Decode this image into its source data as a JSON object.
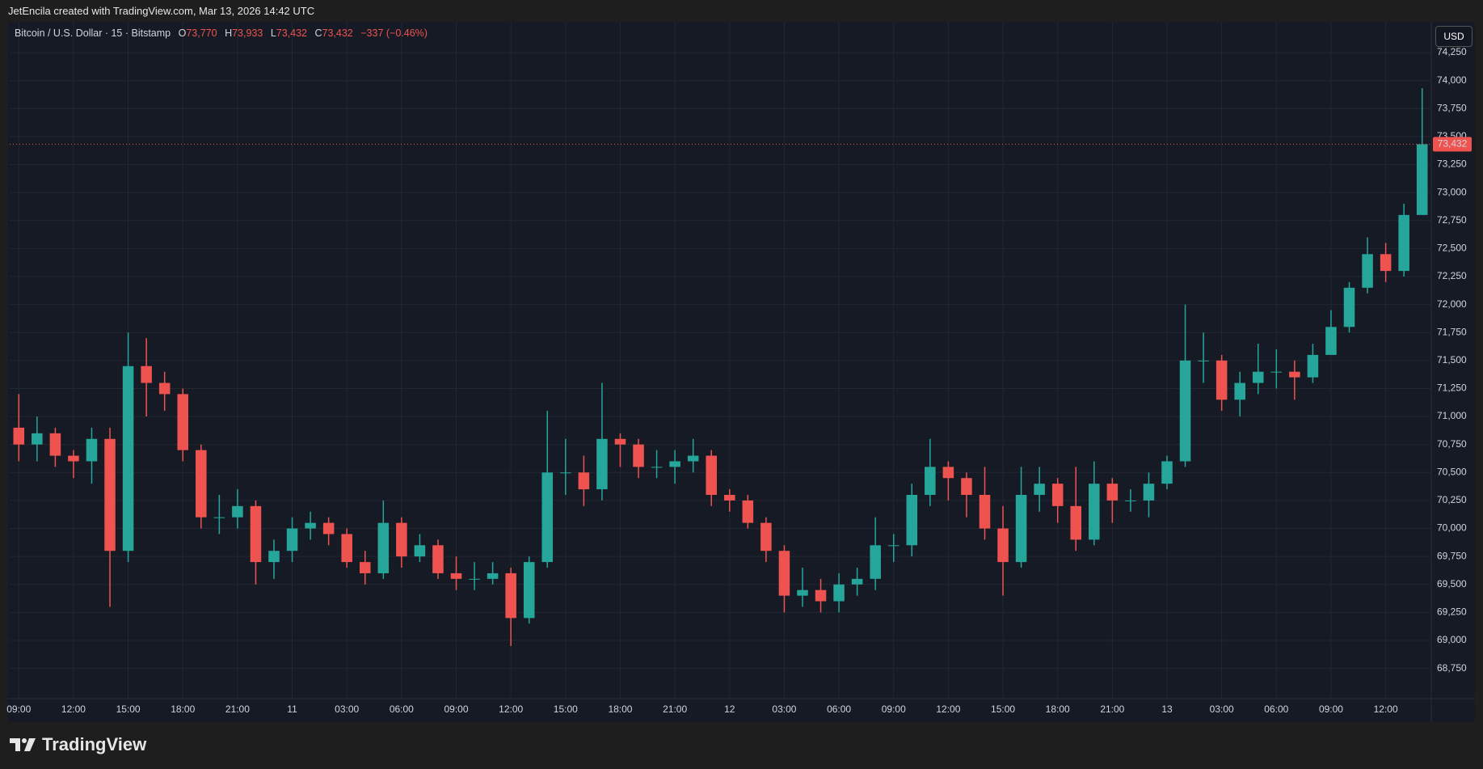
{
  "chart_data": {
    "type": "candlestick",
    "attribution": "JetEncila created with TradingView.com, Mar 13, 2026 14:42 UTC",
    "symbol": "Bitcoin / U.S. Dollar · 15 · Bitstamp",
    "ohlc_header": {
      "o_label": "O",
      "open": "73,770",
      "h_label": "H",
      "high": "73,933",
      "l_label": "L",
      "low": "73,432",
      "c_label": "C",
      "close": "73,432",
      "change": "−337 (−0.46%)"
    },
    "currency": "USD",
    "brand": "TradingView",
    "up_color": "#26a69a",
    "down_color": "#ef5350",
    "grid": true,
    "categories": [
      "09:00",
      null,
      null,
      "12:00",
      null,
      null,
      "15:00",
      null,
      null,
      "18:00",
      null,
      null,
      "21:00",
      null,
      null,
      "11",
      null,
      null,
      "03:00",
      null,
      null,
      "06:00",
      null,
      null,
      "09:00",
      null,
      null,
      "12:00",
      null,
      null,
      "15:00",
      null,
      null,
      "18:00",
      null,
      null,
      "21:00",
      null,
      null,
      "12",
      null,
      null,
      "03:00",
      null,
      null,
      "06:00",
      null,
      null,
      "09:00",
      null,
      null,
      "12:00",
      null,
      null,
      "15:00",
      null,
      null,
      "18:00",
      null,
      null,
      "21:00",
      null,
      null,
      "13",
      null,
      null,
      "03:00",
      null,
      null,
      "06:00",
      null,
      null,
      "09:00",
      null,
      null,
      "12:00",
      null,
      null
    ],
    "open": [
      70900,
      70750,
      70850,
      70650,
      70600,
      70800,
      69800,
      71450,
      71300,
      71200,
      70700,
      70100,
      70100,
      70200,
      69700,
      69800,
      70000,
      70050,
      69950,
      69700,
      69600,
      70050,
      69750,
      69850,
      69600,
      69550,
      69550,
      69600,
      69200,
      69700,
      70500,
      70500,
      70350,
      70800,
      70750,
      70550,
      70550,
      70600,
      70650,
      70300,
      70250,
      70050,
      69800,
      69400,
      69450,
      69350,
      69500,
      69550,
      69850,
      69850,
      70300,
      70550,
      70450,
      70300,
      70000,
      69700,
      70300,
      70400,
      70200,
      69900,
      70400,
      70250,
      70250,
      70400,
      70600,
      71500,
      71500,
      71150,
      71300,
      71400,
      71400,
      71350,
      71550,
      71800,
      72150,
      72450,
      72300,
      72800
    ],
    "high": [
      71200,
      71000,
      70900,
      70700,
      70900,
      70900,
      71750,
      71700,
      71400,
      71250,
      70750,
      70300,
      70350,
      70250,
      69900,
      70100,
      70150,
      70100,
      70000,
      69800,
      70250,
      70100,
      69950,
      69900,
      69750,
      69700,
      69700,
      69650,
      69750,
      71050,
      70800,
      70650,
      71300,
      70850,
      70800,
      70700,
      70700,
      70800,
      70700,
      70350,
      70300,
      70100,
      69850,
      69650,
      69550,
      69600,
      69650,
      70100,
      69950,
      70400,
      70800,
      70600,
      70500,
      70550,
      70200,
      70550,
      70550,
      70450,
      70550,
      70600,
      70450,
      70350,
      70500,
      70650,
      72000,
      71750,
      71550,
      71400,
      71650,
      71600,
      71500,
      71650,
      71950,
      72200,
      72600,
      72550,
      72900,
      73933
    ],
    "low": [
      70600,
      70600,
      70550,
      70450,
      70400,
      69300,
      69700,
      71000,
      71050,
      70600,
      70000,
      69950,
      70000,
      69500,
      69550,
      69700,
      69900,
      69850,
      69650,
      69500,
      69550,
      69650,
      69700,
      69550,
      69450,
      69450,
      69500,
      68950,
      69150,
      69650,
      70300,
      70200,
      70250,
      70550,
      70450,
      70450,
      70400,
      70500,
      70200,
      70150,
      70000,
      69700,
      69250,
      69300,
      69250,
      69250,
      69400,
      69450,
      69700,
      69750,
      70200,
      70250,
      70100,
      69900,
      69400,
      69650,
      70150,
      70050,
      69800,
      69850,
      70050,
      70150,
      70100,
      70350,
      70550,
      71300,
      71050,
      71000,
      71200,
      71250,
      71150,
      71300,
      71550,
      71750,
      72100,
      72200,
      72250,
      72800
    ],
    "close": [
      70750,
      70850,
      70650,
      70600,
      70800,
      69800,
      71450,
      71300,
      71200,
      70700,
      70100,
      70100,
      70200,
      69700,
      69800,
      70000,
      70050,
      69950,
      69700,
      69600,
      70050,
      69750,
      69850,
      69600,
      69550,
      69550,
      69600,
      69200,
      69700,
      70500,
      70500,
      70350,
      70800,
      70750,
      70550,
      70550,
      70600,
      70650,
      70300,
      70250,
      70050,
      69800,
      69400,
      69450,
      69350,
      69500,
      69550,
      69850,
      69850,
      70300,
      70550,
      70450,
      70300,
      70000,
      69700,
      70300,
      70400,
      70200,
      69900,
      70400,
      70250,
      70250,
      70400,
      70600,
      71500,
      71500,
      71150,
      71300,
      71400,
      71400,
      71350,
      71550,
      71800,
      72150,
      72450,
      72300,
      72800,
      73432
    ],
    "ylim": [
      68480,
      74525
    ],
    "yticks": [
      {
        "value": 68750,
        "label": "68,750"
      },
      {
        "value": 69000,
        "label": "69,000"
      },
      {
        "value": 69250,
        "label": "69,250"
      },
      {
        "value": 69500,
        "label": "69,500"
      },
      {
        "value": 69750,
        "label": "69,750"
      },
      {
        "value": 70000,
        "label": "70,000"
      },
      {
        "value": 70250,
        "label": "70,250"
      },
      {
        "value": 70500,
        "label": "70,500"
      },
      {
        "value": 70750,
        "label": "70,750"
      },
      {
        "value": 71000,
        "label": "71,000"
      },
      {
        "value": 71250,
        "label": "71,250"
      },
      {
        "value": 71500,
        "label": "71,500"
      },
      {
        "value": 71750,
        "label": "71,750"
      },
      {
        "value": 72000,
        "label": "72,000"
      },
      {
        "value": 72250,
        "label": "72,250"
      },
      {
        "value": 72500,
        "label": "72,500"
      },
      {
        "value": 72750,
        "label": "72,750"
      },
      {
        "value": 73000,
        "label": "73,000"
      },
      {
        "value": 73250,
        "label": "73,250"
      },
      {
        "value": 73500,
        "label": "73,500"
      },
      {
        "value": 73750,
        "label": "73,750"
      },
      {
        "value": 74000,
        "label": "74,000"
      },
      {
        "value": 74250,
        "label": "74,250"
      }
    ],
    "last_price": {
      "value": 73432,
      "label": "73,432"
    }
  }
}
